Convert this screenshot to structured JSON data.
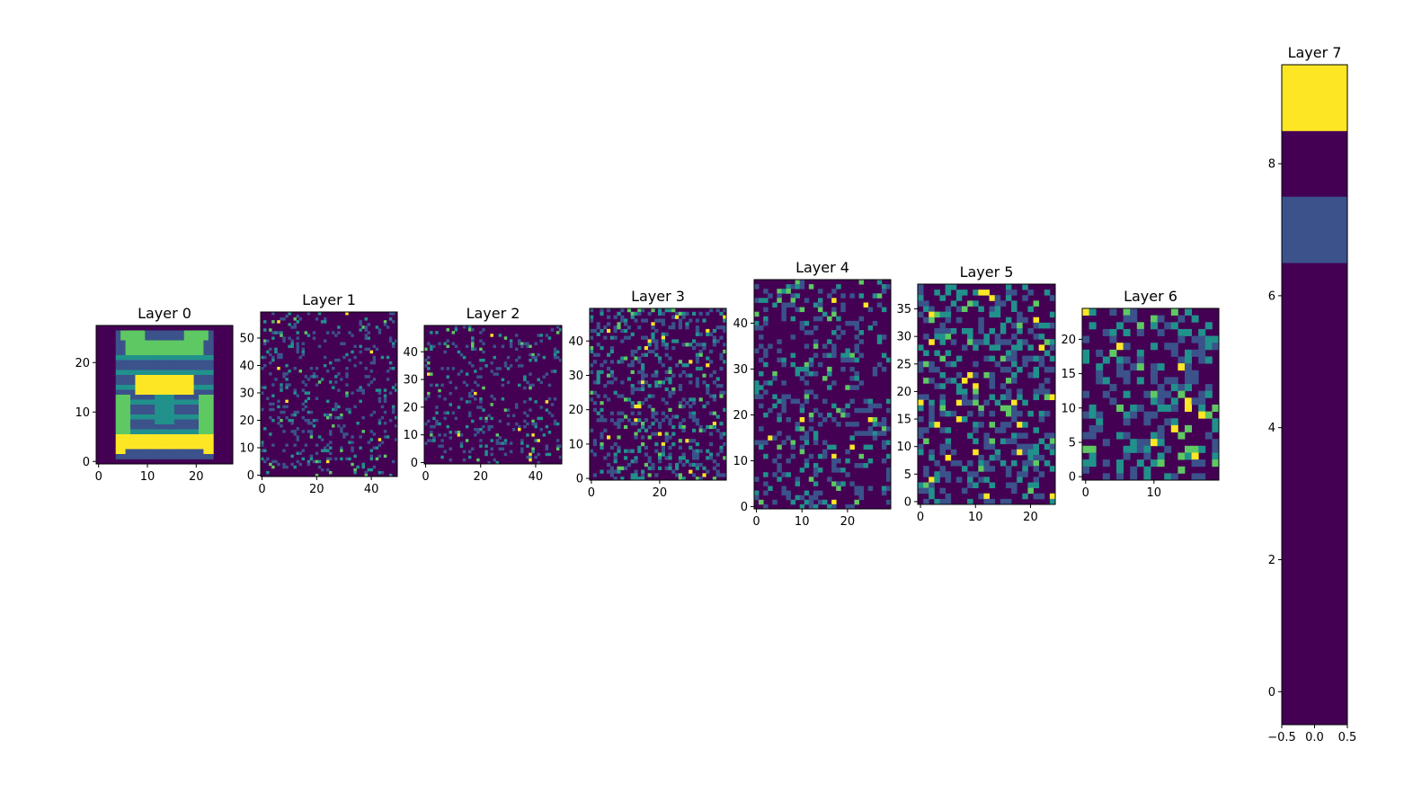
{
  "figure": {
    "colormap": [
      "#440154",
      "#3b528b",
      "#21918c",
      "#5ec962",
      "#fde725"
    ]
  },
  "chart_data": [
    {
      "type": "heatmap",
      "title": "Layer 0",
      "pattern": "car",
      "rows": 28,
      "cols": 28,
      "xticks": [
        0,
        10,
        20
      ],
      "yticks": [
        0,
        10,
        20
      ],
      "xlim": [
        -0.5,
        27.5
      ],
      "ylim": [
        27.5,
        -0.5
      ]
    },
    {
      "type": "heatmap",
      "title": "Layer 1",
      "pattern": "sparse",
      "rows": 60,
      "cols": 50,
      "xticks": [
        0,
        20,
        40
      ],
      "yticks": [
        0,
        10,
        20,
        30,
        40,
        50
      ],
      "xlim": [
        -0.5,
        49.5
      ],
      "ylim": [
        59.5,
        -0.5
      ]
    },
    {
      "type": "heatmap",
      "title": "Layer 2",
      "pattern": "sparse",
      "rows": 50,
      "cols": 50,
      "xticks": [
        0,
        20,
        40
      ],
      "yticks": [
        0,
        10,
        20,
        30,
        40
      ],
      "xlim": [
        -0.5,
        49.5
      ],
      "ylim": [
        49.5,
        -0.5
      ]
    },
    {
      "type": "heatmap",
      "title": "Layer 3",
      "pattern": "medium",
      "rows": 50,
      "cols": 40,
      "xticks": [
        0,
        20
      ],
      "yticks": [
        0,
        10,
        20,
        30,
        40
      ],
      "xlim": [
        -0.5,
        39.5
      ],
      "ylim": [
        49.5,
        -0.5
      ]
    },
    {
      "type": "heatmap",
      "title": "Layer 4",
      "pattern": "medium",
      "rows": 50,
      "cols": 30,
      "xticks": [
        0,
        10,
        20
      ],
      "yticks": [
        0,
        10,
        20,
        30,
        40
      ],
      "xlim": [
        -0.5,
        29.5
      ],
      "ylim": [
        49.5,
        -0.5
      ]
    },
    {
      "type": "heatmap",
      "title": "Layer 5",
      "pattern": "dense",
      "rows": 40,
      "cols": 25,
      "xticks": [
        0,
        10,
        20
      ],
      "yticks": [
        0,
        5,
        10,
        15,
        20,
        25,
        30,
        35
      ],
      "xlim": [
        -0.5,
        24.5
      ],
      "ylim": [
        39.5,
        -0.5
      ]
    },
    {
      "type": "heatmap",
      "title": "Layer 6",
      "pattern": "dense",
      "rows": 25,
      "cols": 20,
      "xticks": [
        0,
        10
      ],
      "yticks": [
        0,
        5,
        10,
        15,
        20
      ],
      "xlim": [
        -0.5,
        19.5
      ],
      "ylim": [
        24.5,
        -0.5
      ]
    },
    {
      "type": "heatmap",
      "title": "Layer 7",
      "rows": 10,
      "cols": 1,
      "values": [
        [
          1.0
        ],
        [
          0.0
        ],
        [
          0.2
        ],
        [
          0.0
        ],
        [
          0.0
        ],
        [
          0.0
        ],
        [
          0.0
        ],
        [
          0.0
        ],
        [
          0.0
        ],
        [
          0.0
        ]
      ],
      "xticks": [
        -0.5,
        0.0,
        0.5
      ],
      "xtick_labels": [
        "−0.5",
        "0.0",
        "0.5"
      ],
      "yticks": [
        0,
        2,
        4,
        6,
        8
      ],
      "xlim": [
        -0.5,
        0.5
      ],
      "ylim": [
        9.5,
        -0.5
      ]
    }
  ]
}
